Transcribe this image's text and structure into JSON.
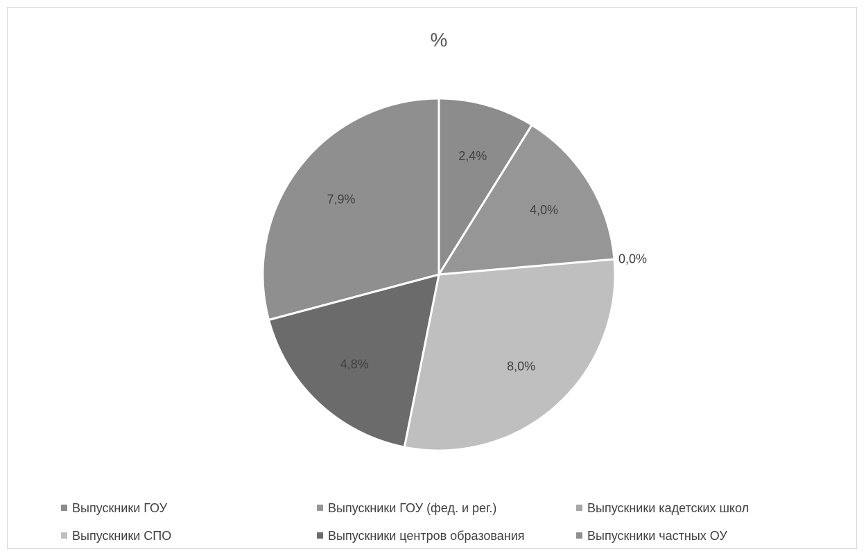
{
  "chart_data": {
    "type": "pie",
    "title": "%",
    "categories": [
      "Выпускники ГОУ",
      "Выпускники ГОУ (фед. и рег.)",
      "Выпускники кадетских школ",
      "Выпускники СПО",
      "Выпускники центров образования",
      "Выпускники частных ОУ"
    ],
    "values": [
      2.4,
      4.0,
      0.0,
      8.0,
      4.8,
      7.9
    ],
    "data_labels": [
      "2,4%",
      "4,0%",
      "0,0%",
      "8,0%",
      "4,8%",
      "7,9%"
    ],
    "colors": [
      "#8c8c8c",
      "#969696",
      "#a6a6a6",
      "#bfbfbf",
      "#6b6b6b",
      "#8f8f8f"
    ],
    "legend_position": "bottom"
  }
}
